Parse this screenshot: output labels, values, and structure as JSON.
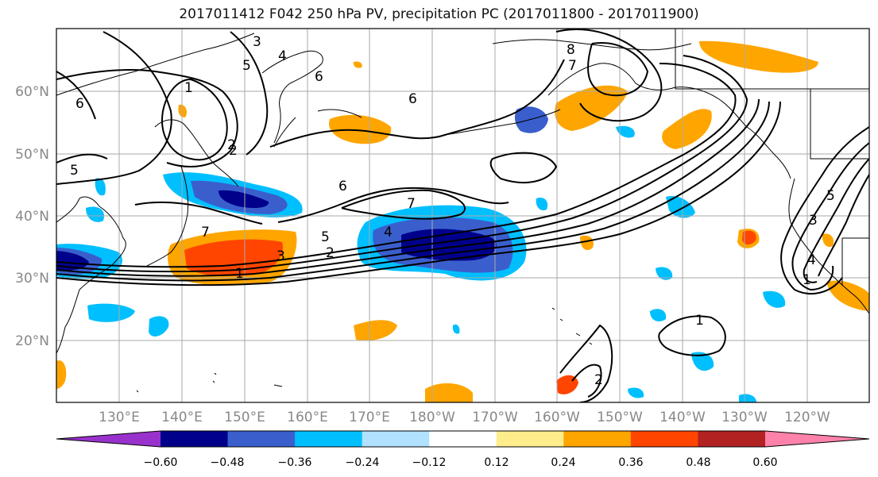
{
  "title": "2017011412 F042 250 hPa PV, precipitation PC (2017011800 - 2017011900)",
  "lat_labels": [
    "60°N",
    "50°N",
    "40°N",
    "30°N",
    "20°N"
  ],
  "lon_labels": [
    "130°E",
    "140°E",
    "150°E",
    "160°E",
    "170°E",
    "180°W",
    "170°W",
    "160°W",
    "150°W",
    "140°W",
    "130°W",
    "120°W"
  ],
  "colorbar": {
    "colors": [
      "#9932cc",
      "#00008b",
      "#3a5fcd",
      "#00bfff",
      "#b0e2ff",
      "#ffffff",
      "#ffec8b",
      "#ffa500",
      "#ff4500",
      "#b22222",
      "#ff82ab"
    ],
    "tick_labels": [
      "−0.60",
      "−0.48",
      "−0.36",
      "−0.24",
      "−0.12",
      "0.12",
      "0.24",
      "0.36",
      "0.48",
      "0.60"
    ]
  },
  "contour_labels": [
    "3",
    "4",
    "1",
    "6",
    "6",
    "6",
    "5",
    "2",
    "6",
    "7",
    "5",
    "4",
    "7",
    "5",
    "2",
    "3",
    "1",
    "7",
    "8",
    "1",
    "3",
    "4",
    "5",
    "2",
    "1",
    "2"
  ],
  "colors": {
    "contour": "#000000",
    "grid": "#aaaaaa",
    "coast": "#000000",
    "label": "#888888"
  }
}
